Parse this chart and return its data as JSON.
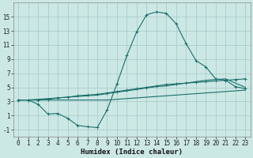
{
  "xlabel": "Humidex (Indice chaleur)",
  "background_color": "#cce8e5",
  "grid_color": "#aaccca",
  "line_color": "#1a6e6a",
  "x_values": [
    0,
    1,
    2,
    3,
    4,
    5,
    6,
    7,
    8,
    9,
    10,
    11,
    12,
    13,
    14,
    15,
    16,
    17,
    18,
    19,
    20,
    21,
    22,
    23
  ],
  "curve1": [
    3.2,
    3.2,
    2.6,
    1.2,
    1.3,
    0.6,
    -0.4,
    -0.6,
    -0.7,
    1.8,
    5.5,
    9.5,
    12.9,
    15.3,
    15.7,
    15.5,
    14.0,
    11.2,
    8.8,
    7.9,
    6.2,
    6.0,
    5.1,
    4.8
  ],
  "curve2": [
    3.2,
    3.2,
    3.2,
    3.3,
    3.5,
    3.6,
    3.8,
    3.9,
    4.0,
    4.2,
    4.4,
    4.6,
    4.8,
    5.0,
    5.2,
    5.4,
    5.5,
    5.6,
    5.7,
    5.8,
    5.9,
    6.0,
    6.1,
    6.2
  ],
  "curve3": [
    3.2,
    3.2,
    3.2,
    3.2,
    3.2,
    3.2,
    3.2,
    3.2,
    3.2,
    3.2,
    3.3,
    3.4,
    3.5,
    3.6,
    3.7,
    3.8,
    3.9,
    4.0,
    4.1,
    4.2,
    4.3,
    4.4,
    4.5,
    4.6
  ],
  "curve4": [
    3.2,
    3.2,
    3.3,
    3.4,
    3.5,
    3.6,
    3.7,
    3.8,
    3.9,
    4.1,
    4.3,
    4.5,
    4.7,
    4.9,
    5.1,
    5.2,
    5.4,
    5.6,
    5.8,
    6.0,
    6.1,
    6.2,
    5.6,
    5.0
  ],
  "ylim": [
    -2,
    17
  ],
  "xlim": [
    -0.5,
    23.5
  ],
  "yticks": [
    -1,
    1,
    3,
    5,
    7,
    9,
    11,
    13,
    15
  ],
  "xticks": [
    0,
    1,
    2,
    3,
    4,
    5,
    6,
    7,
    8,
    9,
    10,
    11,
    12,
    13,
    14,
    15,
    16,
    17,
    18,
    19,
    20,
    21,
    22,
    23
  ],
  "tick_fontsize": 5.5,
  "xlabel_fontsize": 6.5
}
